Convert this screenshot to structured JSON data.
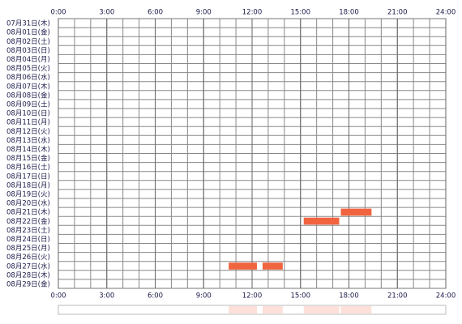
{
  "chart_data": {
    "type": "timeline",
    "categories": [
      "07月31日(木)",
      "08月01日(金)",
      "08月02日(土)",
      "08月03日(日)",
      "08月04日(月)",
      "08月05日(火)",
      "08月06日(水)",
      "08月07日(木)",
      "08月08日(金)",
      "08月09日(土)",
      "08月10日(日)",
      "08月11日(月)",
      "08月12日(火)",
      "08月13日(水)",
      "08月14日(木)",
      "08月15日(金)",
      "08月16日(土)",
      "08月17日(日)",
      "08月18日(月)",
      "08月19日(火)",
      "08月20日(水)",
      "08月21日(木)",
      "08月22日(金)",
      "08月23日(土)",
      "08月24日(日)",
      "08月25日(月)",
      "08月26日(火)",
      "08月27日(水)",
      "08月28日(木)",
      "08月29日(金)"
    ],
    "values": [
      [],
      [],
      [],
      [],
      [],
      [],
      [],
      [],
      [],
      [],
      [],
      [],
      [],
      [],
      [],
      [],
      [],
      [],
      [],
      [],
      [],
      [
        [
          17.5,
          19.4
        ]
      ],
      [
        [
          15.2,
          17.4
        ]
      ],
      [],
      [],
      [],
      [],
      [
        [
          10.55,
          12.3
        ],
        [
          12.65,
          13.9
        ]
      ],
      [],
      []
    ],
    "color": "#f0643f",
    "xlim": [
      0,
      24
    ],
    "xticks": [
      {
        "value": 0,
        "label": "0:00"
      },
      {
        "value": 3,
        "label": "3:00"
      },
      {
        "value": 6,
        "label": "6:00"
      },
      {
        "value": 9,
        "label": "9:00"
      },
      {
        "value": 12,
        "label": "12:00"
      },
      {
        "value": 15,
        "label": "15:00"
      },
      {
        "value": 18,
        "label": "18:00"
      },
      {
        "value": 21,
        "label": "21:00"
      },
      {
        "value": 24,
        "label": "24:00"
      }
    ],
    "grid_step": 1
  }
}
